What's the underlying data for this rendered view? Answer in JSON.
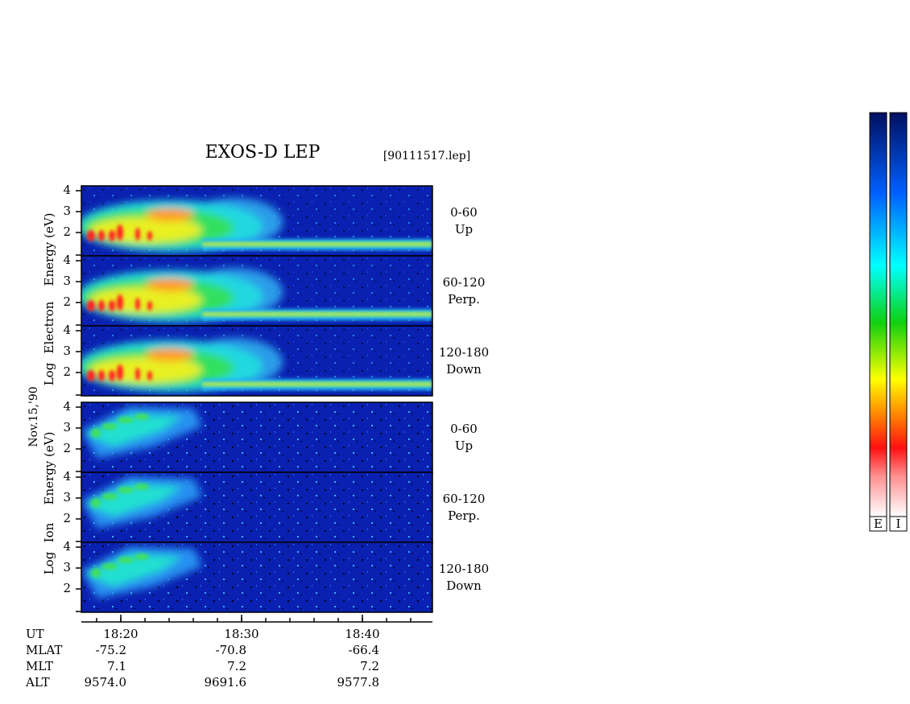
{
  "title": "EXOS-D LEP",
  "file": "[90111517.lep]",
  "date": "Nov.15,'90",
  "electron": {
    "axis_label": [
      "Log",
      "Electron",
      "Energy (eV)"
    ],
    "yticks": [
      4,
      3,
      2
    ],
    "panels": [
      {
        "angle": "0-60",
        "direction": "Up"
      },
      {
        "angle": "60-120",
        "direction": "Perp."
      },
      {
        "angle": "120-180",
        "direction": "Down"
      }
    ]
  },
  "ion": {
    "axis_label": [
      "Log",
      "Ion",
      "Energy (eV)"
    ],
    "yticks": [
      4,
      3,
      2
    ],
    "panels": [
      {
        "angle": "0-60",
        "direction": "Up"
      },
      {
        "angle": "60-120",
        "direction": "Perp."
      },
      {
        "angle": "120-180",
        "direction": "Down"
      }
    ]
  },
  "time_axis": {
    "label": "UT",
    "ticks": [
      "18:20",
      "18:30",
      "18:40"
    ]
  },
  "ephemeris": {
    "rows": [
      {
        "label": "MLAT",
        "values": [
          "-75.2",
          "-70.8",
          "-66.4"
        ]
      },
      {
        "label": "MLT",
        "values": [
          "7.1",
          "7.2",
          "7.2"
        ]
      },
      {
        "label": "ALT",
        "values": [
          "9574.0",
          "9691.6",
          "9577.8"
        ]
      }
    ]
  },
  "colorbars": [
    "E",
    "I"
  ]
}
